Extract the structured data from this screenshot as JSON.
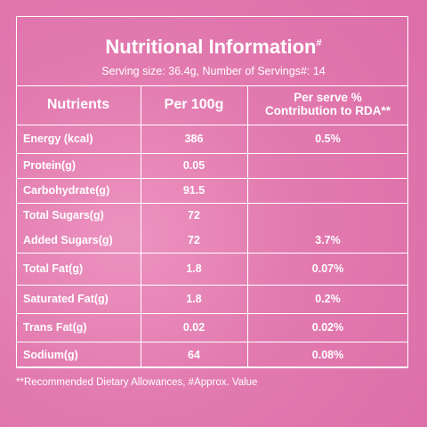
{
  "header": {
    "title": "Nutritional Information",
    "title_mark": "#",
    "subtitle": "Serving size: 36.4g, Number of Servings#: 14"
  },
  "table": {
    "columns": [
      "Nutrients",
      "Per 100g",
      [
        "Per serve %",
        "Contribution to RDA**"
      ]
    ],
    "rows": [
      {
        "lines": [
          {
            "nutrient": "Energy (kcal)",
            "per_100g": "386",
            "rda": "0.5%"
          }
        ]
      },
      {
        "lines": [
          {
            "nutrient": "Protein(g)",
            "per_100g": "0.05"
          }
        ]
      },
      {
        "lines": [
          {
            "nutrient": "Carbohydrate(g)",
            "per_100g": "91.5"
          }
        ]
      },
      {
        "lines": [
          {
            "nutrient": "Total Sugars(g)",
            "per_100g": "72"
          },
          {
            "nutrient": "Added Sugars(g)",
            "per_100g": "72",
            "rda": "3.7%"
          }
        ]
      },
      {
        "lines": [
          {
            "nutrient": "Total Fat(g)",
            "per_100g": "1.8",
            "rda": "0.07%"
          }
        ]
      },
      {
        "lines": [
          {
            "nutrient": "Saturated Fat(g)",
            "per_100g": "1.8",
            "rda": "0.2%"
          }
        ]
      },
      {
        "lines": [
          {
            "nutrient": "Trans Fat(g)",
            "per_100g": "0.02",
            "rda": "0.02%"
          }
        ]
      },
      {
        "lines": [
          {
            "nutrient": "Sodium(g)",
            "per_100g": "64",
            "rda": "0.08%"
          }
        ]
      }
    ]
  },
  "footnote": "**Recommended Dietary Allowances, #Approx. Value"
}
